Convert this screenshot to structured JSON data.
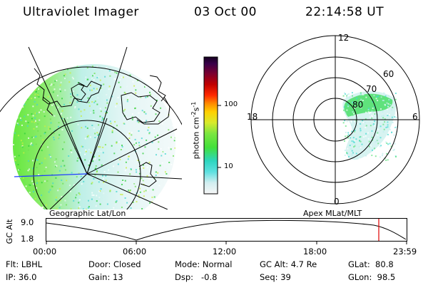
{
  "header": {
    "title": "Ultraviolet Imager",
    "date": "03 Oct 00",
    "time": "22:14:58 UT"
  },
  "geo_panel": {
    "label": "Geographic Lat/Lon"
  },
  "colorbar": {
    "unit_base": "photon cm",
    "unit_exp1": "-2",
    "unit_mid": "s",
    "unit_exp2": "-1",
    "ticks": [
      "100",
      "10"
    ]
  },
  "polar_panel": {
    "label": "Apex MLat/MLT",
    "mlt_labels": {
      "top": "12",
      "left": "18",
      "right": "6",
      "bottom": "0"
    },
    "lat_labels": [
      "60",
      "70",
      "80"
    ]
  },
  "altitude_plot": {
    "ylabel": "GC Alt",
    "yticks": [
      "9.0",
      "1.8"
    ],
    "xticks": [
      "00:00",
      "06:00",
      "12:00",
      "18:00",
      "23:59"
    ]
  },
  "info": {
    "filter": "Flt: LBHL",
    "door": "Door: Closed",
    "mode": "Mode: Normal",
    "gc_alt": "GC Alt: 4.7 Re",
    "glat": "GLat:  80.8",
    "ip": "IP: 36.0",
    "gain": "Gain: 13",
    "dsp": "Dsp:   -0.8",
    "seq": "Seq: 39",
    "glon": "GLon:  98.5"
  }
}
